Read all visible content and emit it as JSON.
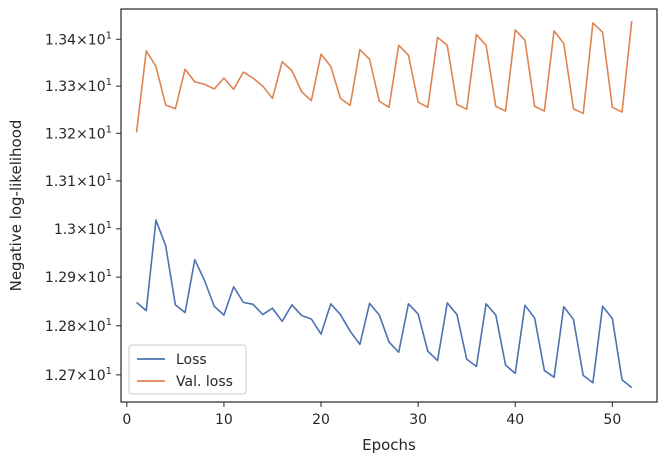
{
  "chart_data": {
    "type": "line",
    "xlabel": "Epochs",
    "ylabel": "Negative log-likelihood",
    "xlim": [
      -0.6,
      54.6
    ],
    "ylim": [
      12.645,
      13.465
    ],
    "x_ticks": [
      0,
      10,
      20,
      30,
      40,
      50
    ],
    "y_ticks": [
      {
        "value": 12.7,
        "mantissa": "1.27",
        "exp": "1"
      },
      {
        "value": 12.8,
        "mantissa": "1.28",
        "exp": "1"
      },
      {
        "value": 12.9,
        "mantissa": "1.29",
        "exp": "1"
      },
      {
        "value": 13.0,
        "mantissa": "1.3",
        "exp": "1"
      },
      {
        "value": 13.1,
        "mantissa": "1.31",
        "exp": "1"
      },
      {
        "value": 13.2,
        "mantissa": "1.32",
        "exp": "1"
      },
      {
        "value": 13.3,
        "mantissa": "1.33",
        "exp": "1"
      },
      {
        "value": 13.4,
        "mantissa": "1.34",
        "exp": "1"
      }
    ],
    "y_scale": "log",
    "grid": false,
    "legend_position": "lower-left",
    "x": [
      1,
      2,
      3,
      4,
      5,
      6,
      7,
      8,
      9,
      10,
      11,
      12,
      13,
      14,
      15,
      16,
      17,
      18,
      19,
      20,
      21,
      22,
      23,
      24,
      25,
      26,
      27,
      28,
      29,
      30,
      31,
      32,
      33,
      34,
      35,
      36,
      37,
      38,
      39,
      40,
      41,
      42,
      43,
      44,
      45,
      46,
      47,
      48,
      49,
      50,
      51,
      52
    ],
    "series": [
      {
        "name": "Loss",
        "color": "#4c72b0",
        "values": [
          12.848,
          12.831,
          13.018,
          12.965,
          12.843,
          12.827,
          12.936,
          12.893,
          12.84,
          12.822,
          12.88,
          12.848,
          12.844,
          12.823,
          12.836,
          12.809,
          12.843,
          12.821,
          12.814,
          12.783,
          12.845,
          12.823,
          12.789,
          12.762,
          12.846,
          12.822,
          12.767,
          12.746,
          12.845,
          12.824,
          12.748,
          12.729,
          12.847,
          12.823,
          12.732,
          12.717,
          12.845,
          12.822,
          12.72,
          12.703,
          12.842,
          12.816,
          12.709,
          12.695,
          12.839,
          12.813,
          12.699,
          12.684,
          12.84,
          12.815,
          12.69,
          12.674
        ]
      },
      {
        "name": "Val. loss",
        "color": "#dd8452",
        "values": [
          13.202,
          13.375,
          13.342,
          13.26,
          13.252,
          13.336,
          13.309,
          13.304,
          13.294,
          13.317,
          13.293,
          13.33,
          13.317,
          13.3,
          13.274,
          13.352,
          13.333,
          13.288,
          13.269,
          13.368,
          13.342,
          13.274,
          13.259,
          13.378,
          13.357,
          13.268,
          13.255,
          13.387,
          13.366,
          13.266,
          13.255,
          13.404,
          13.387,
          13.261,
          13.251,
          13.41,
          13.387,
          13.257,
          13.247,
          13.42,
          13.398,
          13.257,
          13.247,
          13.418,
          13.391,
          13.252,
          13.242,
          13.435,
          13.415,
          13.255,
          13.245,
          13.439
        ]
      }
    ]
  }
}
